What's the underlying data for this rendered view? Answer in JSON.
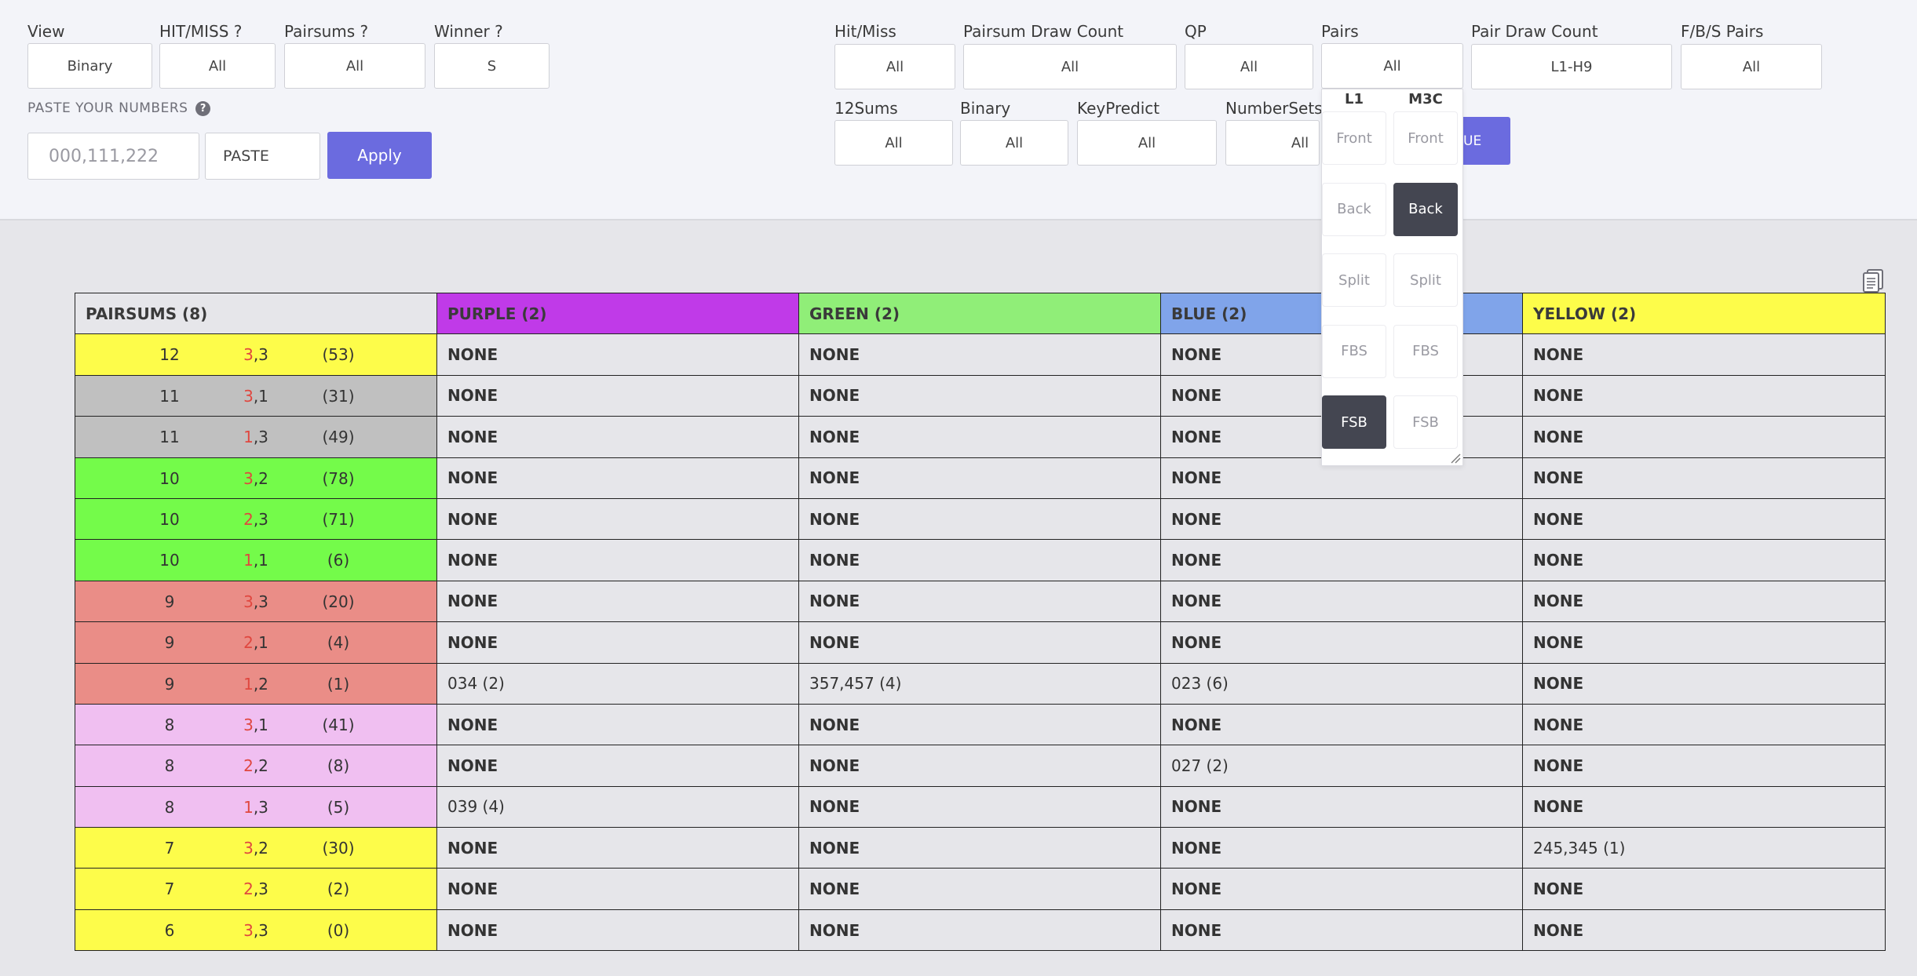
{
  "filters_left": [
    {
      "label": "View",
      "value": "Binary"
    },
    {
      "label": "HIT/MISS ?",
      "value": "All"
    },
    {
      "label": "Pairsums ?",
      "value": "All"
    },
    {
      "label": "Winner ?",
      "value": "S"
    }
  ],
  "filters_right_row1": [
    {
      "label": "Hit/Miss",
      "value": "All"
    },
    {
      "label": "Pairsum Draw Count",
      "value": "All"
    },
    {
      "label": "QP",
      "value": "All"
    },
    {
      "label": "Pairs",
      "value": "All"
    },
    {
      "label": "Pair Draw Count",
      "value": "L1-H9"
    },
    {
      "label": "F/B/S Pairs",
      "value": "All"
    }
  ],
  "filters_right_row2": [
    {
      "label": "12Sums",
      "value": "All"
    },
    {
      "label": "Binary",
      "value": "All"
    },
    {
      "label": "KeyPredict",
      "value": "All"
    },
    {
      "label": "NumberSets",
      "value": "All"
    }
  ],
  "partial_button_label": "UE",
  "paste": {
    "title": "PASTE YOUR NUMBERS",
    "help": "?",
    "placeholder": "000,111,222",
    "paste_label": "PASTE",
    "apply_label": "Apply"
  },
  "pairs_dropdown": {
    "columns": [
      "L1",
      "M3C"
    ],
    "rows": [
      {
        "left": "Front",
        "right": "Front",
        "left_active": false,
        "right_active": false
      },
      {
        "left": "Back",
        "right": "Back",
        "left_active": false,
        "right_active": true
      },
      {
        "left": "Split",
        "right": "Split",
        "left_active": false,
        "right_active": false
      },
      {
        "left": "FBS",
        "right": "FBS",
        "left_active": false,
        "right_active": false
      },
      {
        "left": "FSB",
        "right": "FSB",
        "left_active": true,
        "right_active": false
      }
    ]
  },
  "table": {
    "headers": [
      {
        "label": "PAIRSUMS (8)",
        "color": "#e6e6ea"
      },
      {
        "label": "PURPLE (2)",
        "color": "#c03ae8"
      },
      {
        "label": "GREEN (2)",
        "color": "#90ee78"
      },
      {
        "label": "BLUE (2)",
        "color": "#80a4ea"
      },
      {
        "label": "YELLOW (2)",
        "color": "#fdfc4a"
      }
    ],
    "rows": [
      {
        "sum": "12",
        "p1": "3",
        "p2": "3",
        "count": "(53)",
        "bg": "#fdfc4a",
        "cells": [
          "NONE",
          "NONE",
          "NONE",
          "NONE"
        ]
      },
      {
        "sum": "11",
        "p1": "3",
        "p2": "1",
        "count": "(31)",
        "bg": "#c0c0c0",
        "cells": [
          "NONE",
          "NONE",
          "NONE",
          "NONE"
        ]
      },
      {
        "sum": "11",
        "p1": "1",
        "p2": "3",
        "count": "(49)",
        "bg": "#c0c0c0",
        "cells": [
          "NONE",
          "NONE",
          "NONE",
          "NONE"
        ]
      },
      {
        "sum": "10",
        "p1": "3",
        "p2": "2",
        "count": "(78)",
        "bg": "#74fb4a",
        "cells": [
          "NONE",
          "NONE",
          "NONE",
          "NONE"
        ]
      },
      {
        "sum": "10",
        "p1": "2",
        "p2": "3",
        "count": "(71)",
        "bg": "#74fb4a",
        "cells": [
          "NONE",
          "NONE",
          "NONE",
          "NONE"
        ]
      },
      {
        "sum": "10",
        "p1": "1",
        "p2": "1",
        "count": "(6)",
        "bg": "#74fb4a",
        "cells": [
          "NONE",
          "NONE",
          "NONE",
          "NONE"
        ]
      },
      {
        "sum": "9",
        "p1": "3",
        "p2": "3",
        "count": "(20)",
        "bg": "#ea8d87",
        "cells": [
          "NONE",
          "NONE",
          "NONE",
          "NONE"
        ]
      },
      {
        "sum": "9",
        "p1": "2",
        "p2": "1",
        "count": "(4)",
        "bg": "#ea8d87",
        "cells": [
          "NONE",
          "NONE",
          "NONE",
          "NONE"
        ]
      },
      {
        "sum": "9",
        "p1": "1",
        "p2": "2",
        "count": "(1)",
        "bg": "#ea8d87",
        "cells": [
          "034 (2)",
          "357,457 (4)",
          "023 (6)",
          "NONE"
        ]
      },
      {
        "sum": "8",
        "p1": "3",
        "p2": "1",
        "count": "(41)",
        "bg": "#f0bff1",
        "cells": [
          "NONE",
          "NONE",
          "NONE",
          "NONE"
        ]
      },
      {
        "sum": "8",
        "p1": "2",
        "p2": "2",
        "count": "(8)",
        "bg": "#f0bff1",
        "cells": [
          "NONE",
          "NONE",
          "027 (2)",
          "NONE"
        ]
      },
      {
        "sum": "8",
        "p1": "1",
        "p2": "3",
        "count": "(5)",
        "bg": "#f0bff1",
        "cells": [
          "039 (4)",
          "NONE",
          "NONE",
          "NONE"
        ]
      },
      {
        "sum": "7",
        "p1": "3",
        "p2": "2",
        "count": "(30)",
        "bg": "#fdfc4a",
        "cells": [
          "NONE",
          "NONE",
          "NONE",
          "245,345 (1)"
        ]
      },
      {
        "sum": "7",
        "p1": "2",
        "p2": "3",
        "count": "(2)",
        "bg": "#fdfc4a",
        "cells": [
          "NONE",
          "NONE",
          "NONE",
          "NONE"
        ]
      },
      {
        "sum": "6",
        "p1": "3",
        "p2": "3",
        "count": "(0)",
        "bg": "#fdfc4a",
        "cells": [
          "NONE",
          "NONE",
          "NONE",
          "NONE"
        ]
      }
    ]
  }
}
